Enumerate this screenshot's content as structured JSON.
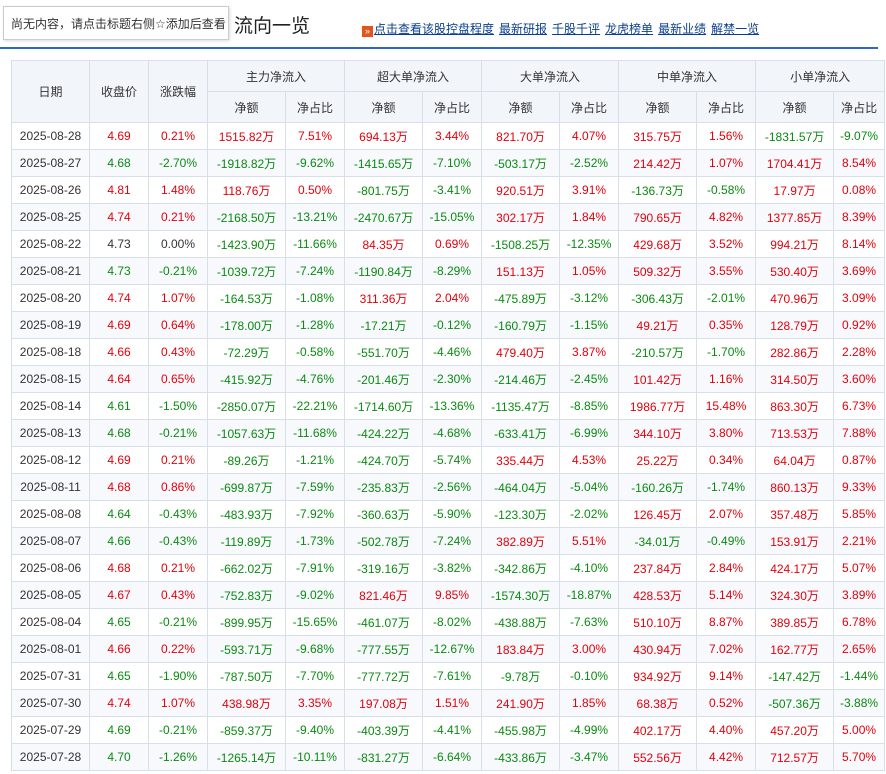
{
  "header": {
    "tooltip": "尚无内容，请点击标题右侧☆添加后查看",
    "title": "资金流向一览",
    "title_visible_part": "流向一览",
    "links": [
      "点击查看该股控盘程度",
      "最新研报",
      "千股千评",
      "龙虎榜单",
      "最新业绩",
      "解禁一览"
    ]
  },
  "table": {
    "group_headers": [
      "日期",
      "收盘价",
      "涨跌幅",
      "主力净流入",
      "超大单净流入",
      "大单净流入",
      "中单净流入",
      "小单净流入"
    ],
    "sub_headers": [
      "净额",
      "净占比"
    ],
    "rows": [
      [
        "2025-08-28",
        "4.69",
        "0.21%",
        "1515.82万",
        "7.51%",
        "694.13万",
        "3.44%",
        "821.70万",
        "4.07%",
        "315.75万",
        "1.56%",
        "-1831.57万",
        "-9.07%"
      ],
      [
        "2025-08-27",
        "4.68",
        "-2.70%",
        "-1918.82万",
        "-9.62%",
        "-1415.65万",
        "-7.10%",
        "-503.17万",
        "-2.52%",
        "214.42万",
        "1.07%",
        "1704.41万",
        "8.54%"
      ],
      [
        "2025-08-26",
        "4.81",
        "1.48%",
        "118.76万",
        "0.50%",
        "-801.75万",
        "-3.41%",
        "920.51万",
        "3.91%",
        "-136.73万",
        "-0.58%",
        "17.97万",
        "0.08%"
      ],
      [
        "2025-08-25",
        "4.74",
        "0.21%",
        "-2168.50万",
        "-13.21%",
        "-2470.67万",
        "-15.05%",
        "302.17万",
        "1.84%",
        "790.65万",
        "4.82%",
        "1377.85万",
        "8.39%"
      ],
      [
        "2025-08-22",
        "4.73",
        "0.00%",
        "-1423.90万",
        "-11.66%",
        "84.35万",
        "0.69%",
        "-1508.25万",
        "-12.35%",
        "429.68万",
        "3.52%",
        "994.21万",
        "8.14%"
      ],
      [
        "2025-08-21",
        "4.73",
        "-0.21%",
        "-1039.72万",
        "-7.24%",
        "-1190.84万",
        "-8.29%",
        "151.13万",
        "1.05%",
        "509.32万",
        "3.55%",
        "530.40万",
        "3.69%"
      ],
      [
        "2025-08-20",
        "4.74",
        "1.07%",
        "-164.53万",
        "-1.08%",
        "311.36万",
        "2.04%",
        "-475.89万",
        "-3.12%",
        "-306.43万",
        "-2.01%",
        "470.96万",
        "3.09%"
      ],
      [
        "2025-08-19",
        "4.69",
        "0.64%",
        "-178.00万",
        "-1.28%",
        "-17.21万",
        "-0.12%",
        "-160.79万",
        "-1.15%",
        "49.21万",
        "0.35%",
        "128.79万",
        "0.92%"
      ],
      [
        "2025-08-18",
        "4.66",
        "0.43%",
        "-72.29万",
        "-0.58%",
        "-551.70万",
        "-4.46%",
        "479.40万",
        "3.87%",
        "-210.57万",
        "-1.70%",
        "282.86万",
        "2.28%"
      ],
      [
        "2025-08-15",
        "4.64",
        "0.65%",
        "-415.92万",
        "-4.76%",
        "-201.46万",
        "-2.30%",
        "-214.46万",
        "-2.45%",
        "101.42万",
        "1.16%",
        "314.50万",
        "3.60%"
      ],
      [
        "2025-08-14",
        "4.61",
        "-1.50%",
        "-2850.07万",
        "-22.21%",
        "-1714.60万",
        "-13.36%",
        "-1135.47万",
        "-8.85%",
        "1986.77万",
        "15.48%",
        "863.30万",
        "6.73%"
      ],
      [
        "2025-08-13",
        "4.68",
        "-0.21%",
        "-1057.63万",
        "-11.68%",
        "-424.22万",
        "-4.68%",
        "-633.41万",
        "-6.99%",
        "344.10万",
        "3.80%",
        "713.53万",
        "7.88%"
      ],
      [
        "2025-08-12",
        "4.69",
        "0.21%",
        "-89.26万",
        "-1.21%",
        "-424.70万",
        "-5.74%",
        "335.44万",
        "4.53%",
        "25.22万",
        "0.34%",
        "64.04万",
        "0.87%"
      ],
      [
        "2025-08-11",
        "4.68",
        "0.86%",
        "-699.87万",
        "-7.59%",
        "-235.83万",
        "-2.56%",
        "-464.04万",
        "-5.04%",
        "-160.26万",
        "-1.74%",
        "860.13万",
        "9.33%"
      ],
      [
        "2025-08-08",
        "4.64",
        "-0.43%",
        "-483.93万",
        "-7.92%",
        "-360.63万",
        "-5.90%",
        "-123.30万",
        "-2.02%",
        "126.45万",
        "2.07%",
        "357.48万",
        "5.85%"
      ],
      [
        "2025-08-07",
        "4.66",
        "-0.43%",
        "-119.89万",
        "-1.73%",
        "-502.78万",
        "-7.24%",
        "382.89万",
        "5.51%",
        "-34.01万",
        "-0.49%",
        "153.91万",
        "2.21%"
      ],
      [
        "2025-08-06",
        "4.68",
        "0.21%",
        "-662.02万",
        "-7.91%",
        "-319.16万",
        "-3.82%",
        "-342.86万",
        "-4.10%",
        "237.84万",
        "2.84%",
        "424.17万",
        "5.07%"
      ],
      [
        "2025-08-05",
        "4.67",
        "0.43%",
        "-752.83万",
        "-9.02%",
        "821.46万",
        "9.85%",
        "-1574.30万",
        "-18.87%",
        "428.53万",
        "5.14%",
        "324.30万",
        "3.89%"
      ],
      [
        "2025-08-04",
        "4.65",
        "-0.21%",
        "-899.95万",
        "-15.65%",
        "-461.07万",
        "-8.02%",
        "-438.88万",
        "-7.63%",
        "510.10万",
        "8.87%",
        "389.85万",
        "6.78%"
      ],
      [
        "2025-08-01",
        "4.66",
        "0.22%",
        "-593.71万",
        "-9.68%",
        "-777.55万",
        "-12.67%",
        "183.84万",
        "3.00%",
        "430.94万",
        "7.02%",
        "162.77万",
        "2.65%"
      ],
      [
        "2025-07-31",
        "4.65",
        "-1.90%",
        "-787.50万",
        "-7.70%",
        "-777.72万",
        "-7.61%",
        "-9.78万",
        "-0.10%",
        "934.92万",
        "9.14%",
        "-147.42万",
        "-1.44%"
      ],
      [
        "2025-07-30",
        "4.74",
        "1.07%",
        "438.98万",
        "3.35%",
        "197.08万",
        "1.51%",
        "241.90万",
        "1.85%",
        "68.38万",
        "0.52%",
        "-507.36万",
        "-3.88%"
      ],
      [
        "2025-07-29",
        "4.69",
        "-0.21%",
        "-859.37万",
        "-9.40%",
        "-403.39万",
        "-4.41%",
        "-455.98万",
        "-4.99%",
        "402.17万",
        "4.40%",
        "457.20万",
        "5.00%"
      ],
      [
        "2025-07-28",
        "4.70",
        "-1.26%",
        "-1265.14万",
        "-10.11%",
        "-831.27万",
        "-6.64%",
        "-433.86万",
        "-3.47%",
        "552.56万",
        "4.42%",
        "712.57万",
        "5.70%"
      ]
    ]
  },
  "colors": {
    "up": "#e3000b",
    "down": "#0a8a11",
    "accent": "#2a6ac5"
  }
}
